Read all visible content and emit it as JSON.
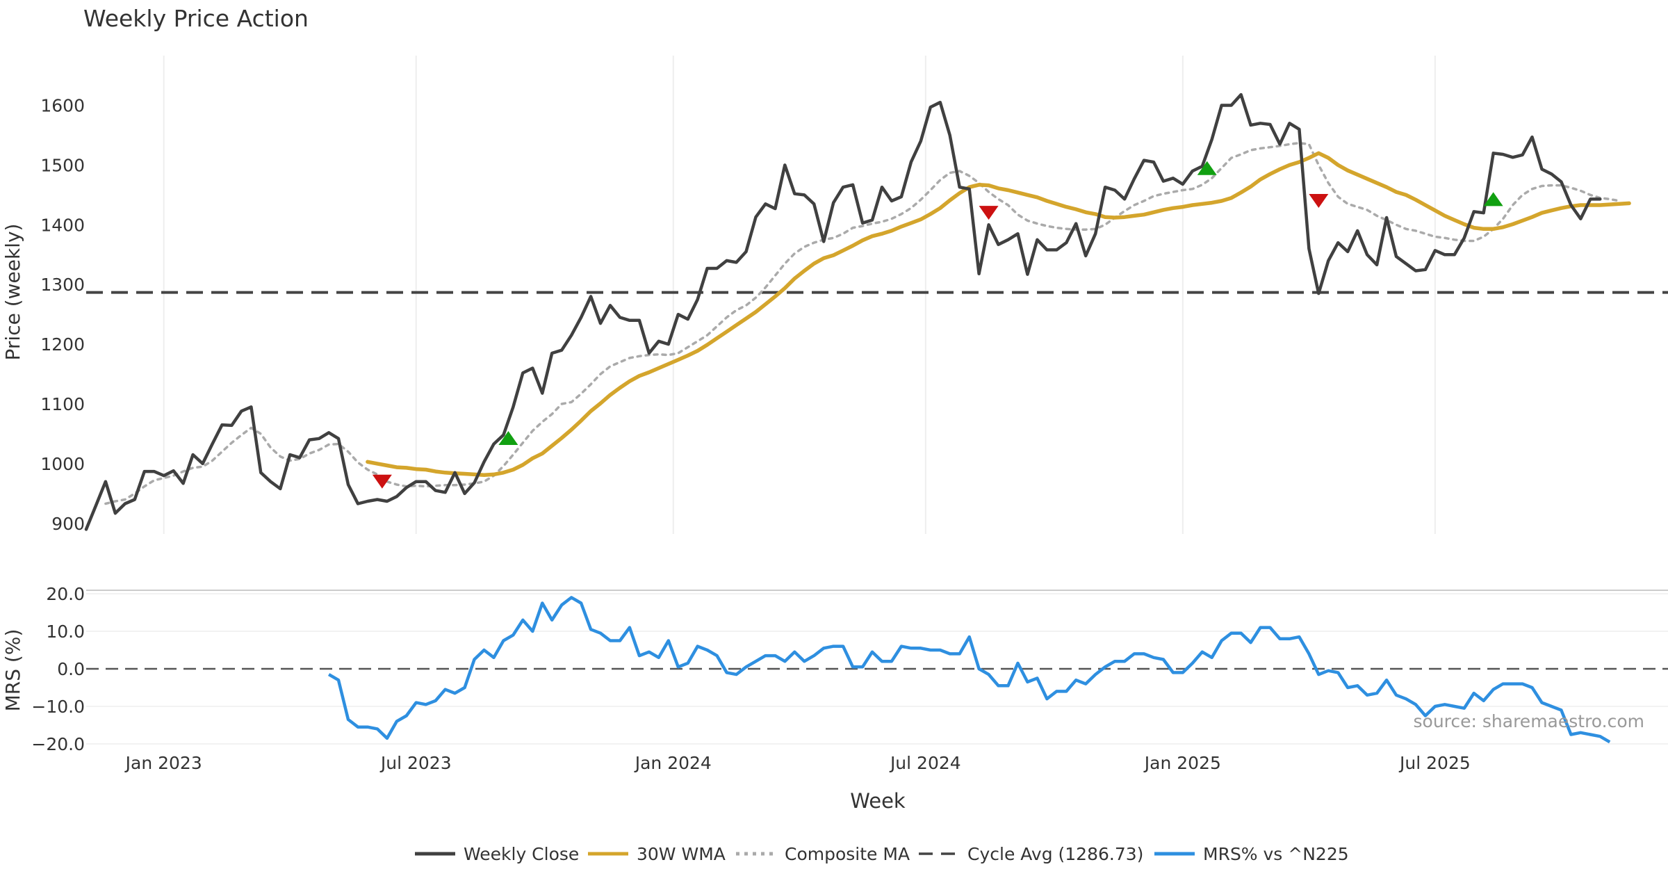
{
  "chart_data": [
    {
      "type": "line",
      "title": "Weekly Price Action",
      "xlabel": "Week",
      "ylabel": "Price (weekly)",
      "ylim": [
        880,
        1660
      ],
      "yticks": [
        900,
        1000,
        1100,
        1200,
        1300,
        1400,
        1500,
        1600
      ],
      "xlim": [
        0,
        163
      ],
      "xticks": [
        {
          "x": 8,
          "label": "Jan 2023"
        },
        {
          "x": 34,
          "label": "Jul 2023"
        },
        {
          "x": 60.5,
          "label": "Jan 2024"
        },
        {
          "x": 86.5,
          "label": "Jul 2024"
        },
        {
          "x": 113,
          "label": "Jan 2025"
        },
        {
          "x": 139,
          "label": "Jul 2025"
        }
      ],
      "grid": true,
      "cycle_avg": 1286.73,
      "series": [
        {
          "name": "Weekly Close",
          "color": "#404040",
          "style": "solid",
          "x_start": 0,
          "values": [
            890,
            930,
            970,
            917,
            933,
            940,
            987,
            987,
            980,
            988,
            967,
            1015,
            1000,
            1033,
            1065,
            1064,
            1088,
            1095,
            985,
            970,
            958,
            1015,
            1010,
            1040,
            1042,
            1052,
            1042,
            965,
            933,
            937,
            940,
            937,
            945,
            960,
            970,
            970,
            955,
            952,
            985,
            950,
            968,
            1003,
            1033,
            1048,
            1095,
            1152,
            1160,
            1118,
            1185,
            1190,
            1215,
            1245,
            1280,
            1235,
            1265,
            1245,
            1240,
            1240,
            1185,
            1205,
            1200,
            1250,
            1242,
            1275,
            1327,
            1327,
            1340,
            1337,
            1355,
            1413,
            1435,
            1427,
            1500,
            1452,
            1450,
            1435,
            1372,
            1437,
            1463,
            1467,
            1403,
            1408,
            1463,
            1440,
            1447,
            1505,
            1540,
            1597,
            1605,
            1550,
            1463,
            1460,
            1318,
            1400,
            1367,
            1375,
            1385,
            1317,
            1375,
            1358,
            1358,
            1370,
            1402,
            1348,
            1385,
            1463,
            1458,
            1443,
            1477,
            1508,
            1505,
            1473,
            1478,
            1468,
            1490,
            1498,
            1543,
            1600,
            1600,
            1618,
            1567,
            1570,
            1568,
            1535,
            1570,
            1560,
            1360,
            1285,
            1340,
            1370,
            1355,
            1390,
            1350,
            1333,
            1412,
            1347,
            1335,
            1323,
            1325,
            1357,
            1350,
            1350,
            1378,
            1422,
            1420,
            1520,
            1518,
            1513,
            1517,
            1547,
            1493,
            1485,
            1472,
            1433,
            1410,
            1443,
            1443
          ]
        },
        {
          "name": "30W WMA",
          "color": "#D4A52C",
          "style": "solid",
          "x_start": 29,
          "values": [
            1003,
            1000,
            997,
            994,
            993,
            991,
            990,
            987,
            985,
            984,
            983,
            982,
            981,
            982,
            985,
            990,
            998,
            1009,
            1017,
            1030,
            1043,
            1057,
            1072,
            1088,
            1101,
            1115,
            1127,
            1138,
            1147,
            1153,
            1160,
            1167,
            1174,
            1181,
            1189,
            1199,
            1210,
            1221,
            1232,
            1243,
            1254,
            1267,
            1280,
            1294,
            1310,
            1323,
            1335,
            1344,
            1349,
            1357,
            1365,
            1374,
            1381,
            1385,
            1390,
            1397,
            1403,
            1409,
            1418,
            1428,
            1441,
            1453,
            1463,
            1467,
            1466,
            1461,
            1458,
            1454,
            1450,
            1446,
            1440,
            1435,
            1430,
            1426,
            1421,
            1418,
            1413,
            1412,
            1413,
            1415,
            1417,
            1421,
            1425,
            1428,
            1430,
            1433,
            1435,
            1437,
            1440,
            1445,
            1454,
            1464,
            1476,
            1485,
            1493,
            1500,
            1505,
            1512,
            1520,
            1512,
            1500,
            1491,
            1484,
            1477,
            1470,
            1463,
            1455,
            1450,
            1442,
            1433,
            1424,
            1415,
            1408,
            1401,
            1395,
            1393,
            1393,
            1396,
            1401,
            1407,
            1413,
            1420,
            1424,
            1428,
            1431,
            1433,
            1433,
            1433,
            1434,
            1435,
            1436
          ]
        },
        {
          "name": "Composite MA",
          "color": "#AAAAAA",
          "style": "dotted",
          "x_start": 2,
          "values": [
            933,
            937,
            940,
            950,
            962,
            972,
            976,
            980,
            987,
            993,
            995,
            1005,
            1020,
            1035,
            1048,
            1060,
            1050,
            1027,
            1012,
            1005,
            1008,
            1017,
            1023,
            1032,
            1033,
            1020,
            1002,
            990,
            982,
            970,
            965,
            962,
            963,
            962,
            963,
            964,
            964,
            965,
            967,
            970,
            980,
            996,
            1015,
            1035,
            1055,
            1070,
            1083,
            1100,
            1103,
            1117,
            1133,
            1150,
            1163,
            1170,
            1177,
            1180,
            1182,
            1183,
            1182,
            1185,
            1195,
            1205,
            1215,
            1230,
            1245,
            1257,
            1265,
            1278,
            1295,
            1315,
            1335,
            1352,
            1363,
            1370,
            1375,
            1378,
            1385,
            1395,
            1398,
            1402,
            1405,
            1410,
            1418,
            1428,
            1442,
            1458,
            1475,
            1487,
            1490,
            1482,
            1470,
            1455,
            1443,
            1433,
            1417,
            1407,
            1402,
            1398,
            1395,
            1393,
            1392,
            1392,
            1393,
            1400,
            1412,
            1423,
            1433,
            1440,
            1448,
            1452,
            1455,
            1458,
            1460,
            1467,
            1478,
            1495,
            1512,
            1518,
            1525,
            1528,
            1530,
            1532,
            1535,
            1537,
            1535,
            1500,
            1470,
            1447,
            1435,
            1430,
            1425,
            1415,
            1408,
            1400,
            1393,
            1390,
            1385,
            1380,
            1378,
            1375,
            1373,
            1373,
            1380,
            1393,
            1410,
            1433,
            1450,
            1460,
            1465,
            1466,
            1466,
            1462,
            1457,
            1450,
            1445,
            1443,
            1440
          ]
        }
      ],
      "signals": [
        {
          "type": "sell",
          "x": 30.5,
          "y": 970,
          "color": "#CC1111"
        },
        {
          "type": "buy",
          "x": 43.5,
          "y": 1043,
          "color": "#11A011"
        },
        {
          "type": "sell",
          "x": 93,
          "y": 1420,
          "color": "#CC1111"
        },
        {
          "type": "buy",
          "x": 115.5,
          "y": 1495,
          "color": "#11A011"
        },
        {
          "type": "sell",
          "x": 127,
          "y": 1440,
          "color": "#CC1111"
        },
        {
          "type": "buy",
          "x": 145,
          "y": 1443,
          "color": "#11A011"
        }
      ]
    },
    {
      "type": "line",
      "ylabel": "MRS (%)",
      "ylim": [
        -20,
        20
      ],
      "yticks": [
        20,
        10,
        0,
        -10,
        -20
      ],
      "ytick_labels": [
        "20.0",
        "10.0",
        "0.0",
        "−10.0",
        "−20.0"
      ],
      "series": [
        {
          "name": "MRS% vs ^N225",
          "color": "#2E8FE0",
          "style": "solid",
          "x_start": 25,
          "values": [
            -1.5,
            -3,
            -13.5,
            -15.5,
            -15.5,
            -16,
            -18.5,
            -14,
            -12.5,
            -9,
            -9.5,
            -8.5,
            -5.5,
            -6.5,
            -5,
            2.5,
            5,
            3,
            7.5,
            9,
            13,
            10,
            17.5,
            13,
            17,
            19,
            17.5,
            10.5,
            9.5,
            7.5,
            7.5,
            11,
            3.5,
            4.5,
            3,
            7.5,
            0.5,
            1.5,
            6,
            5,
            3.5,
            -1,
            -1.5,
            0.5,
            2,
            3.5,
            3.5,
            2,
            4.5,
            2,
            3.5,
            5.5,
            6,
            6,
            0.5,
            0.5,
            4.5,
            2,
            2,
            6,
            5.5,
            5.5,
            5,
            5,
            4,
            4,
            8.5,
            0,
            -1.5,
            -4.5,
            -4.5,
            1.5,
            -3.5,
            -2.5,
            -8,
            -6,
            -6,
            -3,
            -4,
            -1.5,
            0.5,
            2,
            2,
            4,
            4,
            3,
            2.5,
            -1,
            -1,
            1.5,
            4.5,
            3,
            7.5,
            9.5,
            9.5,
            7,
            11,
            11,
            8,
            8,
            8.5,
            4,
            -1.5,
            -0.5,
            -1,
            -5,
            -4.5,
            -7,
            -6.5,
            -3,
            -7,
            -8,
            -9.5,
            -12.5,
            -10,
            -9.5,
            -10,
            -10.5,
            -6.5,
            -8.5,
            -5.5,
            -4,
            -4,
            -4,
            -5,
            -9,
            -10,
            -11,
            -17.5,
            -17,
            -17.5,
            -18,
            -19.5
          ]
        }
      ],
      "reference_line": 0,
      "annotation": "source: sharemaestro.com"
    }
  ],
  "legend": [
    {
      "label": "Weekly Close",
      "color": "#404040",
      "style": "solid"
    },
    {
      "label": "30W WMA",
      "color": "#D4A52C",
      "style": "solid"
    },
    {
      "label": "Composite MA",
      "color": "#AAAAAA",
      "style": "dotted"
    },
    {
      "label": "Cycle Avg (1286.73)",
      "color": "#444444",
      "style": "dashed"
    },
    {
      "label": "MRS% vs ^N225",
      "color": "#2E8FE0",
      "style": "solid"
    }
  ]
}
